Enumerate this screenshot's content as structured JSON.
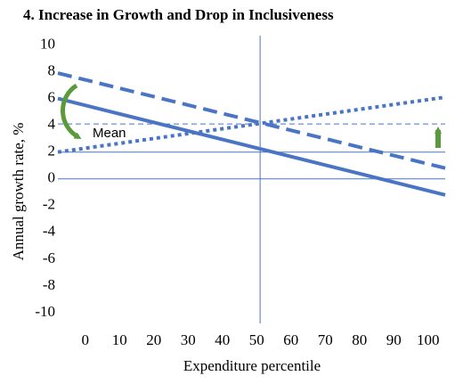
{
  "chart_data": {
    "type": "line",
    "title": "4. Increase in  Growth and Drop in Inclusiveness",
    "xlabel": "Expenditure percentile",
    "ylabel": "Annual  growth  rate, %",
    "annotation": "Mean",
    "x": [
      -8,
      105
    ],
    "series": [
      {
        "color": "#4a74c4",
        "style": "solid",
        "values": [
          6.0,
          -1.2
        ]
      },
      {
        "color": "#4a74c4",
        "style": "dashed",
        "values": [
          7.9,
          0.8
        ]
      },
      {
        "color": "#4a74c4",
        "style": "dotted",
        "values": [
          2.0,
          6.1
        ]
      }
    ],
    "reference_lines": [
      {
        "y": 0,
        "style": "solid"
      },
      {
        "y": 2,
        "style": "solid"
      },
      {
        "y": 4.1,
        "style": "dashed"
      },
      {
        "x": 51,
        "style": "solid"
      }
    ],
    "xlim": [
      -8,
      105
    ],
    "ylim": [
      -10.8,
      10.7
    ],
    "xticks": [
      0,
      10,
      20,
      30,
      40,
      50,
      60,
      70,
      80,
      90,
      100
    ],
    "yticks": [
      10,
      8,
      6,
      4,
      2,
      0,
      -2,
      -4,
      -6,
      -8,
      -10
    ]
  }
}
